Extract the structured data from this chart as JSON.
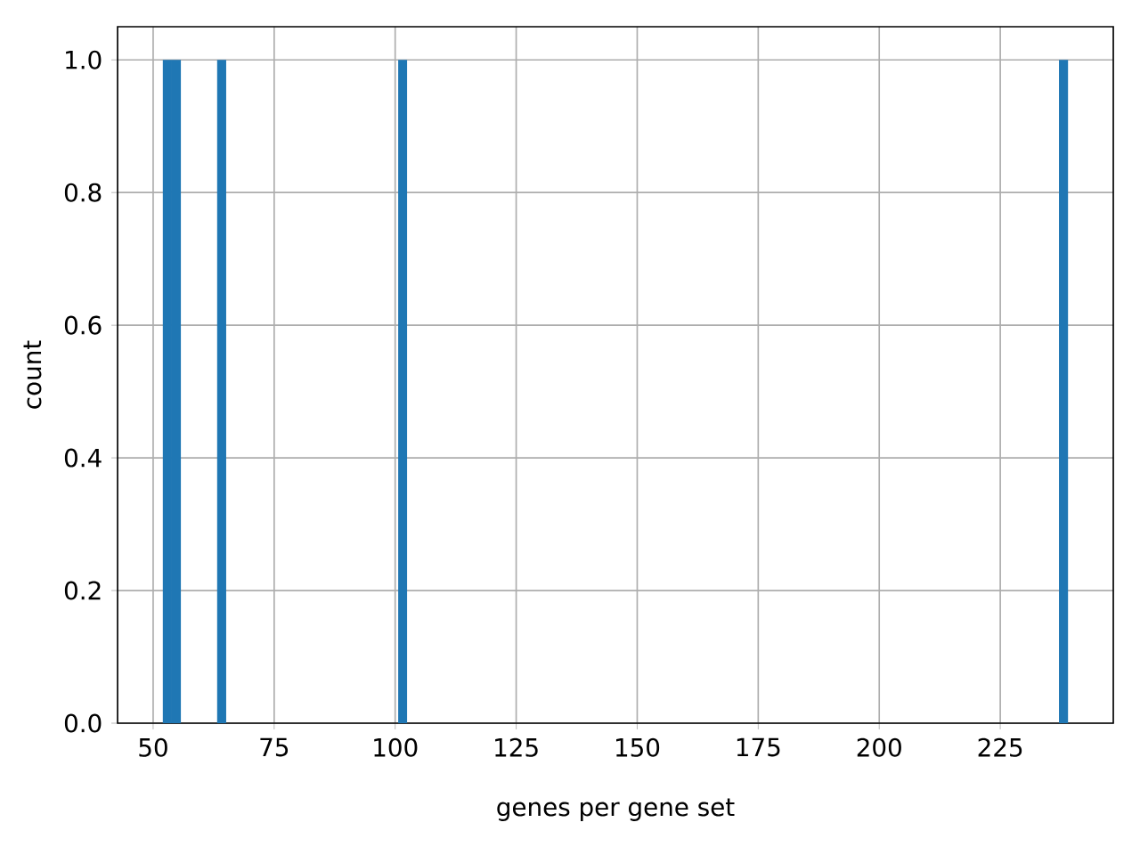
{
  "chart_data": {
    "type": "histogram",
    "xlabel": "genes per gene set",
    "ylabel": "count",
    "bins": [
      52,
      53.87,
      55.74,
      63.22,
      65.09,
      100.62,
      102.49,
      237.13,
      239
    ],
    "values": [
      1,
      1,
      0,
      1,
      0,
      1,
      0,
      1
    ],
    "color": "#1f77b4",
    "xlim": [
      42.65,
      248.35
    ],
    "ylim": [
      0,
      1.05
    ],
    "xticks": [
      50,
      75,
      100,
      125,
      150,
      175,
      200,
      225
    ],
    "yticks": [
      {
        "value": 0,
        "label": "0.0"
      },
      {
        "value": 0.2,
        "label": "0.2"
      },
      {
        "value": 0.4,
        "label": "0.4"
      },
      {
        "value": 0.6,
        "label": "0.6"
      },
      {
        "value": 0.8,
        "label": "0.8"
      },
      {
        "value": 1,
        "label": "1.0"
      }
    ],
    "grid": true
  }
}
